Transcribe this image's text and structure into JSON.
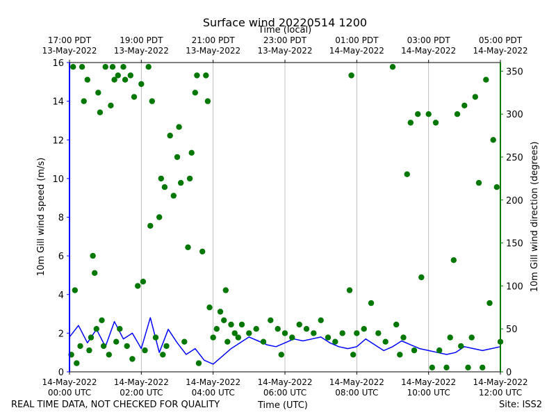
{
  "chart_data": {
    "type": "line+scatter",
    "title": "Surface wind 20220514 1200",
    "top_axis_label": "Time (local)",
    "xlabel": "Time (UTC)",
    "ylabel_left": "10m Gill wind speed (m/s)",
    "ylabel_right": "10m Gill wind direction (degrees)",
    "x_unit": "hours since 14-May-2022 00:00 UTC",
    "xlim": [
      0,
      12
    ],
    "ylim_left": [
      0,
      16
    ],
    "ylim_right": [
      0,
      360
    ],
    "grid": "vertical",
    "colors": {
      "speed": "#0000ff",
      "direction": "#007700",
      "grid": "#b0b0b0"
    },
    "left_ticks": [
      0,
      2,
      4,
      6,
      8,
      10,
      12,
      14,
      16
    ],
    "right_ticks": [
      0,
      50,
      100,
      150,
      200,
      250,
      300,
      350
    ],
    "bottom_ticks": [
      {
        "x": 0,
        "date": "14-May-2022",
        "time": "00:00 UTC"
      },
      {
        "x": 2,
        "date": "14-May-2022",
        "time": "02:00 UTC"
      },
      {
        "x": 4,
        "date": "14-May-2022",
        "time": "04:00 UTC"
      },
      {
        "x": 6,
        "date": "14-May-2022",
        "time": "06:00 UTC"
      },
      {
        "x": 8,
        "date": "14-May-2022",
        "time": "08:00 UTC"
      },
      {
        "x": 10,
        "date": "14-May-2022",
        "time": "10:00 UTC"
      },
      {
        "x": 12,
        "date": "14-May-2022",
        "time": "12:00 UTC"
      }
    ],
    "top_ticks": [
      {
        "x": 0,
        "time": "17:00 PDT",
        "date": "13-May-2022"
      },
      {
        "x": 2,
        "time": "19:00 PDT",
        "date": "13-May-2022"
      },
      {
        "x": 4,
        "time": "21:00 PDT",
        "date": "13-May-2022"
      },
      {
        "x": 6,
        "time": "23:00 PDT",
        "date": "13-May-2022"
      },
      {
        "x": 8,
        "time": "01:00 PDT",
        "date": "14-May-2022"
      },
      {
        "x": 10,
        "time": "03:00 PDT",
        "date": "14-May-2022"
      },
      {
        "x": 12,
        "time": "05:00 PDT",
        "date": "14-May-2022"
      }
    ],
    "speed_series": {
      "name": "10m Gill wind speed",
      "x": [
        0.0,
        0.25,
        0.5,
        0.75,
        1.0,
        1.25,
        1.5,
        1.75,
        2.0,
        2.25,
        2.5,
        2.75,
        3.0,
        3.25,
        3.5,
        3.75,
        4.0,
        4.25,
        4.5,
        4.75,
        5.0,
        5.25,
        5.5,
        5.75,
        6.0,
        6.25,
        6.5,
        6.75,
        7.0,
        7.25,
        7.5,
        7.75,
        8.0,
        8.25,
        8.5,
        8.75,
        9.0,
        9.25,
        9.5,
        9.75,
        10.0,
        10.25,
        10.5,
        10.75,
        11.0,
        11.25,
        11.5,
        11.75,
        12.0
      ],
      "values": [
        1.8,
        2.4,
        1.5,
        2.2,
        1.3,
        2.6,
        1.7,
        2.0,
        1.2,
        2.8,
        1.0,
        2.2,
        1.5,
        0.9,
        1.2,
        0.6,
        0.4,
        0.8,
        1.2,
        1.5,
        1.8,
        1.6,
        1.4,
        1.3,
        1.5,
        1.7,
        1.6,
        1.7,
        1.8,
        1.5,
        1.3,
        1.2,
        1.3,
        1.7,
        1.4,
        1.1,
        1.3,
        1.6,
        1.4,
        1.2,
        1.1,
        1.0,
        0.9,
        1.0,
        1.3,
        1.2,
        1.1,
        1.2,
        1.3
      ]
    },
    "direction_series": {
      "name": "10m Gill wind direction",
      "marker": "circle",
      "x": [
        0.05,
        0.1,
        0.15,
        0.2,
        0.3,
        0.35,
        0.4,
        0.5,
        0.55,
        0.6,
        0.65,
        0.7,
        0.75,
        0.8,
        0.85,
        0.9,
        0.95,
        1.0,
        1.1,
        1.15,
        1.2,
        1.25,
        1.3,
        1.35,
        1.4,
        1.5,
        1.55,
        1.6,
        1.7,
        1.75,
        1.8,
        1.9,
        2.0,
        2.05,
        2.1,
        2.2,
        2.25,
        2.3,
        2.4,
        2.5,
        2.55,
        2.6,
        2.65,
        2.7,
        2.8,
        2.9,
        3.0,
        3.05,
        3.1,
        3.2,
        3.3,
        3.35,
        3.4,
        3.5,
        3.55,
        3.6,
        3.7,
        3.8,
        3.85,
        3.9,
        4.0,
        4.1,
        4.2,
        4.3,
        4.35,
        4.4,
        4.5,
        4.6,
        4.7,
        4.8,
        5.0,
        5.2,
        5.4,
        5.6,
        5.8,
        5.9,
        6.0,
        6.2,
        6.4,
        6.6,
        6.8,
        7.0,
        7.2,
        7.4,
        7.6,
        7.8,
        7.85,
        7.9,
        8.0,
        8.2,
        8.4,
        8.6,
        8.8,
        9.0,
        9.1,
        9.2,
        9.3,
        9.4,
        9.5,
        9.6,
        9.7,
        9.8,
        10.0,
        10.1,
        10.2,
        10.3,
        10.5,
        10.6,
        10.7,
        10.8,
        10.9,
        11.0,
        11.1,
        11.2,
        11.3,
        11.4,
        11.5,
        11.6,
        11.7,
        11.8,
        11.9,
        12.0
      ],
      "values": [
        20,
        355,
        95,
        10,
        30,
        355,
        315,
        340,
        25,
        40,
        135,
        115,
        50,
        325,
        302,
        60,
        30,
        355,
        20,
        310,
        355,
        340,
        35,
        345,
        50,
        355,
        340,
        30,
        345,
        15,
        320,
        100,
        335,
        105,
        25,
        355,
        170,
        315,
        40,
        180,
        225,
        20,
        215,
        30,
        275,
        205,
        250,
        285,
        220,
        35,
        145,
        225,
        255,
        325,
        345,
        10,
        140,
        345,
        315,
        75,
        40,
        50,
        70,
        60,
        95,
        35,
        55,
        45,
        40,
        55,
        45,
        50,
        35,
        60,
        50,
        20,
        45,
        40,
        55,
        50,
        45,
        60,
        40,
        35,
        45,
        95,
        345,
        20,
        45,
        50,
        80,
        45,
        35,
        355,
        55,
        20,
        40,
        230,
        290,
        25,
        300,
        110,
        300,
        5,
        290,
        25,
        5,
        40,
        130,
        300,
        30,
        310,
        5,
        40,
        320,
        220,
        5,
        340,
        80,
        270,
        215,
        35
      ]
    }
  },
  "footer": {
    "left": "REAL TIME DATA, NOT CHECKED FOR QUALITY",
    "right": "Site: ISS2"
  }
}
